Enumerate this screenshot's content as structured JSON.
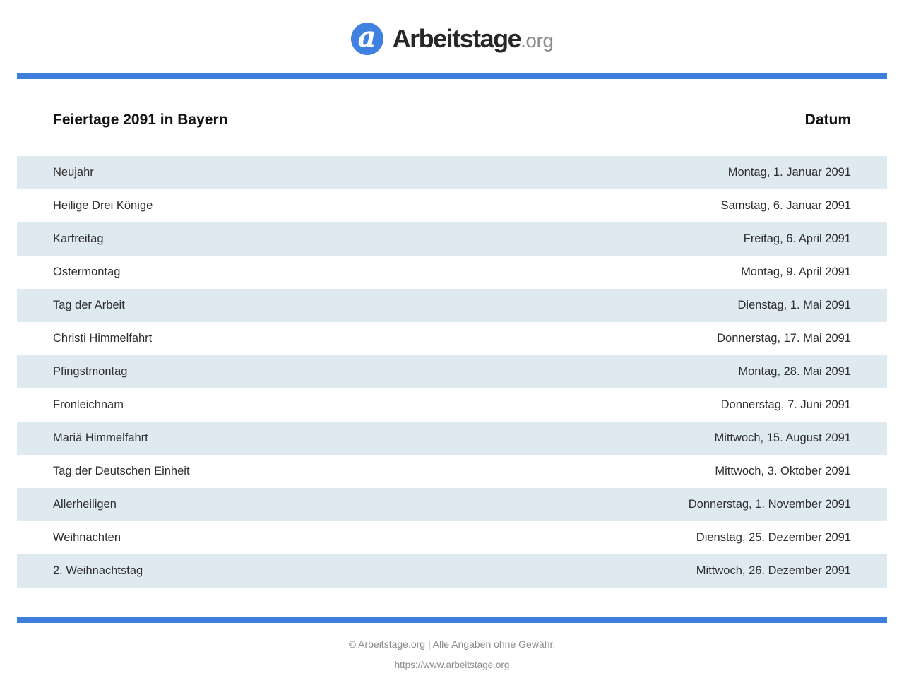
{
  "brand": {
    "logo_letter": "a",
    "logo_name": "Arbeitstage",
    "logo_tld": ".org",
    "logo_circle_color": "#3f81e0",
    "divider_color": "#3e7edd"
  },
  "table": {
    "title": "Feiertage 2091 in Bayern",
    "date_header": "Datum",
    "stripe_color": "#dfe9f0",
    "rows": [
      {
        "name": "Neujahr",
        "date": "Montag, 1. Januar 2091"
      },
      {
        "name": "Heilige Drei Könige",
        "date": "Samstag, 6. Januar 2091"
      },
      {
        "name": "Karfreitag",
        "date": "Freitag, 6. April 2091"
      },
      {
        "name": "Ostermontag",
        "date": "Montag, 9. April 2091"
      },
      {
        "name": "Tag der Arbeit",
        "date": "Dienstag, 1. Mai 2091"
      },
      {
        "name": "Christi Himmelfahrt",
        "date": "Donnerstag, 17. Mai 2091"
      },
      {
        "name": "Pfingstmontag",
        "date": "Montag, 28. Mai 2091"
      },
      {
        "name": "Fronleichnam",
        "date": "Donnerstag, 7. Juni 2091"
      },
      {
        "name": "Mariä Himmelfahrt",
        "date": "Mittwoch, 15. August 2091"
      },
      {
        "name": "Tag der Deutschen Einheit",
        "date": "Mittwoch, 3. Oktober 2091"
      },
      {
        "name": "Allerheiligen",
        "date": "Donnerstag, 1. November 2091"
      },
      {
        "name": "Weihnachten",
        "date": "Dienstag, 25. Dezember 2091"
      },
      {
        "name": "2. Weihnachtstag",
        "date": "Mittwoch, 26. Dezember 2091"
      }
    ]
  },
  "footer": {
    "copyright": "© Arbeitstage.org | Alle Angaben ohne Gewähr.",
    "url": "https://www.arbeitstage.org"
  }
}
